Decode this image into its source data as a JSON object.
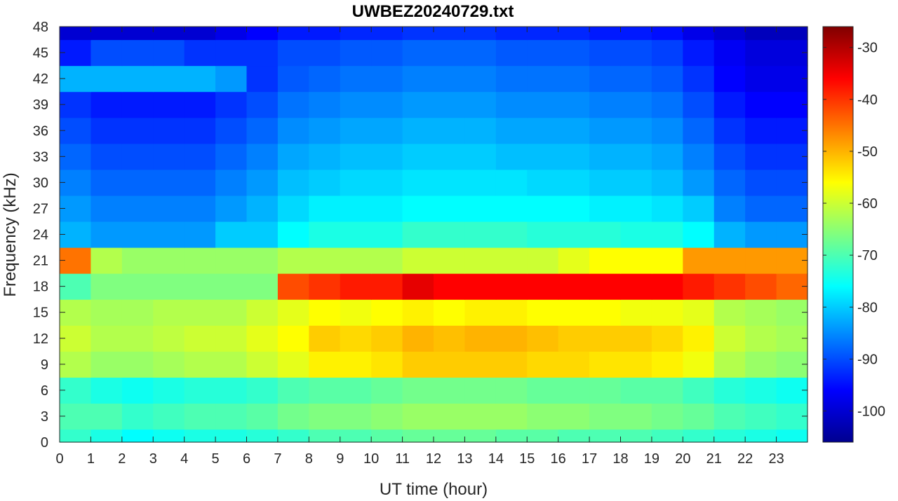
{
  "chart_data": {
    "type": "heatmap",
    "title": "UWBEZ20240729.txt",
    "xlabel": "UT time (hour)",
    "ylabel": "Frequency (kHz)",
    "xlim": [
      0,
      24
    ],
    "ylim": [
      0,
      48
    ],
    "x_ticks": [
      "0",
      "1",
      "2",
      "3",
      "4",
      "5",
      "6",
      "7",
      "8",
      "9",
      "10",
      "11",
      "12",
      "13",
      "14",
      "15",
      "16",
      "17",
      "18",
      "19",
      "20",
      "21",
      "22",
      "23"
    ],
    "y_ticks": [
      "0",
      "3",
      "6",
      "9",
      "12",
      "15",
      "18",
      "21",
      "24",
      "27",
      "30",
      "33",
      "36",
      "39",
      "42",
      "45",
      "48"
    ],
    "colorbar": {
      "colormap": "jet",
      "range": [
        -106,
        -26
      ],
      "ticks": [
        "-30",
        "-40",
        "-50",
        "-60",
        "-70",
        "-80",
        "-90",
        "-100"
      ]
    },
    "x_hours": [
      0,
      1,
      2,
      3,
      4,
      5,
      6,
      7,
      8,
      9,
      10,
      11,
      12,
      13,
      14,
      15,
      16,
      17,
      18,
      19,
      20,
      21,
      22,
      23
    ],
    "y_khz": [
      0,
      3,
      6,
      9,
      12,
      15,
      18,
      21,
      24,
      27,
      30,
      33,
      36,
      39,
      42,
      45,
      48
    ],
    "power_db": [
      [
        -72,
        -74,
        -76,
        -75,
        -74,
        -74,
        -73,
        -72,
        -70,
        -70,
        -69,
        -68,
        -68,
        -68,
        -69,
        -69,
        -70,
        -70,
        -70,
        -71,
        -72,
        -73,
        -74,
        -75
      ],
      [
        -70,
        -70,
        -72,
        -71,
        -70,
        -70,
        -69,
        -67,
        -66,
        -66,
        -65,
        -64,
        -64,
        -64,
        -64,
        -65,
        -65,
        -66,
        -66,
        -67,
        -68,
        -70,
        -71,
        -72
      ],
      [
        -72,
        -74,
        -75,
        -74,
        -73,
        -73,
        -72,
        -70,
        -69,
        -69,
        -68,
        -67,
        -67,
        -67,
        -67,
        -68,
        -68,
        -68,
        -69,
        -69,
        -71,
        -73,
        -74,
        -75
      ],
      [
        -62,
        -64,
        -64,
        -63,
        -62,
        -62,
        -60,
        -58,
        -55,
        -55,
        -54,
        -52,
        -52,
        -52,
        -52,
        -53,
        -53,
        -54,
        -54,
        -55,
        -57,
        -62,
        -64,
        -65
      ],
      [
        -60,
        -62,
        -62,
        -61,
        -60,
        -60,
        -58,
        -56,
        -52,
        -53,
        -52,
        -50,
        -51,
        -50,
        -50,
        -51,
        -52,
        -52,
        -52,
        -53,
        -55,
        -60,
        -62,
        -63
      ],
      [
        -62,
        -63,
        -63,
        -62,
        -62,
        -62,
        -60,
        -58,
        -56,
        -57,
        -56,
        -55,
        -56,
        -55,
        -55,
        -56,
        -56,
        -56,
        -57,
        -57,
        -58,
        -62,
        -63,
        -64
      ],
      [
        -70,
        -66,
        -66,
        -66,
        -66,
        -66,
        -66,
        -42,
        -40,
        -38,
        -38,
        -34,
        -36,
        -36,
        -36,
        -36,
        -36,
        -36,
        -36,
        -36,
        -38,
        -40,
        -42,
        -44
      ],
      [
        -45,
        -62,
        -64,
        -64,
        -64,
        -64,
        -64,
        -62,
        -62,
        -62,
        -62,
        -60,
        -60,
        -60,
        -60,
        -60,
        -58,
        -56,
        -56,
        -56,
        -48,
        -48,
        -48,
        -48
      ],
      [
        -82,
        -84,
        -84,
        -84,
        -84,
        -80,
        -80,
        -76,
        -74,
        -74,
        -74,
        -72,
        -72,
        -72,
        -72,
        -73,
        -73,
        -73,
        -74,
        -74,
        -76,
        -82,
        -84,
        -84
      ],
      [
        -84,
        -86,
        -86,
        -86,
        -86,
        -84,
        -82,
        -79,
        -77,
        -77,
        -77,
        -76,
        -76,
        -76,
        -76,
        -76,
        -76,
        -77,
        -77,
        -78,
        -80,
        -86,
        -88,
        -88
      ],
      [
        -86,
        -88,
        -88,
        -88,
        -88,
        -86,
        -84,
        -81,
        -80,
        -79,
        -79,
        -78,
        -78,
        -78,
        -78,
        -79,
        -79,
        -80,
        -80,
        -81,
        -84,
        -88,
        -90,
        -90
      ],
      [
        -88,
        -90,
        -90,
        -90,
        -90,
        -88,
        -86,
        -83,
        -82,
        -81,
        -81,
        -80,
        -80,
        -80,
        -81,
        -81,
        -81,
        -82,
        -82,
        -83,
        -86,
        -90,
        -92,
        -92
      ],
      [
        -90,
        -92,
        -92,
        -92,
        -92,
        -90,
        -88,
        -85,
        -84,
        -83,
        -83,
        -82,
        -82,
        -82,
        -83,
        -83,
        -83,
        -84,
        -84,
        -85,
        -88,
        -92,
        -94,
        -94
      ],
      [
        -92,
        -94,
        -94,
        -94,
        -94,
        -92,
        -90,
        -87,
        -86,
        -85,
        -85,
        -84,
        -84,
        -84,
        -85,
        -85,
        -85,
        -86,
        -86,
        -87,
        -90,
        -94,
        -96,
        -96
      ],
      [
        -82,
        -82,
        -82,
        -82,
        -82,
        -84,
        -92,
        -89,
        -88,
        -87,
        -87,
        -86,
        -86,
        -86,
        -87,
        -87,
        -87,
        -88,
        -88,
        -89,
        -92,
        -96,
        -98,
        -98
      ],
      [
        -94,
        -90,
        -90,
        -90,
        -92,
        -92,
        -92,
        -90,
        -90,
        -89,
        -89,
        -88,
        -88,
        -88,
        -89,
        -89,
        -89,
        -90,
        -90,
        -91,
        -94,
        -97,
        -99,
        -99
      ],
      [
        -100,
        -100,
        -100,
        -100,
        -100,
        -98,
        -96,
        -94,
        -94,
        -93,
        -93,
        -92,
        -92,
        -92,
        -93,
        -93,
        -93,
        -94,
        -94,
        -95,
        -98,
        -100,
        -102,
        -102
      ]
    ]
  }
}
